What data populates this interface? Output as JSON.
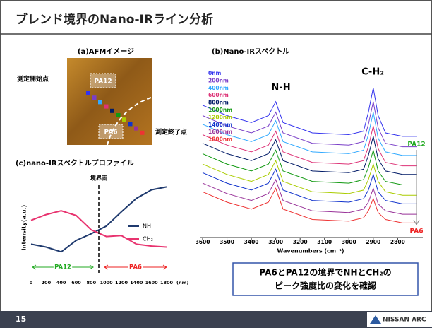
{
  "header": {
    "title": "ブレンド境界のNano-IRライン分析"
  },
  "panel_a": {
    "title": "(a)AFMイメージ",
    "start_label": "測定開始点",
    "end_label": "測定終了点",
    "region_labels": [
      "PA12",
      "PA6"
    ]
  },
  "chart_data": [
    {
      "type": "line",
      "title": "(b)Nano-IRスペクトル",
      "x_label": "Wavenumbers (cm⁻¹)",
      "x": [
        3600,
        3500,
        3400,
        3330,
        3300,
        3270,
        3150,
        3000,
        2940,
        2920,
        2900,
        2880,
        2850,
        2780,
        2720
      ],
      "xlim": [
        3600,
        2720
      ],
      "xticks": [
        3600,
        3500,
        3400,
        3300,
        3200,
        3100,
        3000,
        2900,
        2800
      ],
      "ylim": [
        0,
        100
      ],
      "peak_labels": [
        "N-H",
        "C-H₂"
      ],
      "range_labels": [
        "PA12",
        "PA6"
      ],
      "series": [
        {
          "name": "0nm",
          "color": "#3333ee",
          "values": [
            76,
            70,
            66,
            70,
            78,
            66,
            60,
            59,
            61,
            72,
            86,
            70,
            60,
            58,
            58
          ]
        },
        {
          "name": "200nm",
          "color": "#7a3fc8",
          "values": [
            70,
            64,
            60,
            64,
            72,
            60,
            54,
            53,
            55,
            65,
            78,
            63,
            54,
            52,
            52
          ]
        },
        {
          "name": "400nm",
          "color": "#33aaff",
          "values": [
            65,
            59,
            55,
            59,
            67,
            55,
            49,
            48,
            50,
            59,
            72,
            57,
            49,
            47,
            47
          ]
        },
        {
          "name": "600nm",
          "color": "#dd3377",
          "values": [
            59,
            53,
            49,
            53,
            61,
            49,
            43,
            42,
            44,
            52,
            64,
            51,
            43,
            41,
            41
          ]
        },
        {
          "name": "800nm",
          "color": "#001a66",
          "values": [
            54,
            48,
            44,
            48,
            56,
            44,
            38,
            37,
            39,
            47,
            58,
            45,
            38,
            36,
            36
          ]
        },
        {
          "name": "1000nm",
          "color": "#119911",
          "values": [
            48,
            42,
            38,
            42,
            50,
            38,
            32,
            31,
            33,
            40,
            50,
            38,
            32,
            30,
            30
          ]
        },
        {
          "name": "1200nm",
          "color": "#aacc00",
          "values": [
            42,
            36,
            32,
            36,
            44,
            32,
            26,
            25,
            27,
            33,
            42,
            32,
            26,
            24,
            24
          ]
        },
        {
          "name": "1400nm",
          "color": "#1133cc",
          "values": [
            37,
            31,
            27,
            31,
            39,
            27,
            21,
            20,
            22,
            27,
            36,
            26,
            21,
            19,
            19
          ]
        },
        {
          "name": "1600nm",
          "color": "#993399",
          "values": [
            31,
            25,
            21,
            25,
            33,
            21,
            15,
            14,
            16,
            20,
            28,
            19,
            15,
            13,
            13
          ]
        },
        {
          "name": "1800nm",
          "color": "#ee3333",
          "values": [
            26,
            20,
            16,
            20,
            28,
            16,
            10,
            9,
            11,
            15,
            22,
            14,
            10,
            8,
            8
          ]
        }
      ]
    },
    {
      "type": "line",
      "title": "(c)nano-IRスペクトルプロファイル",
      "y_label": "Intensity(a.u.)",
      "x_unit": "(nm)",
      "x": [
        0,
        200,
        400,
        600,
        800,
        1000,
        1200,
        1400,
        1600,
        1800
      ],
      "xlim": [
        0,
        1800
      ],
      "xticks": [
        0,
        200,
        400,
        600,
        800,
        1000,
        1200,
        1400,
        1600,
        1800
      ],
      "ylim": [
        0,
        100
      ],
      "boundary": {
        "label": "境界面",
        "x": 900
      },
      "region_labels": [
        "PA12",
        "PA6"
      ],
      "series": [
        {
          "name": "NH",
          "color": "#1f3a6e",
          "values": [
            33,
            30,
            25,
            37,
            44,
            52,
            67,
            81,
            90,
            93
          ]
        },
        {
          "name": "CH₂",
          "color": "#e8336f",
          "values": [
            58,
            64,
            68,
            63,
            48,
            41,
            42,
            33,
            31,
            30
          ]
        }
      ]
    }
  ],
  "callout": {
    "lines": [
      "PA6とPA12の境界でNHとCH₂の",
      "ピーク強度比の変化を確認"
    ]
  },
  "footer": {
    "page": "15",
    "logo": "NISSAN ARC"
  }
}
